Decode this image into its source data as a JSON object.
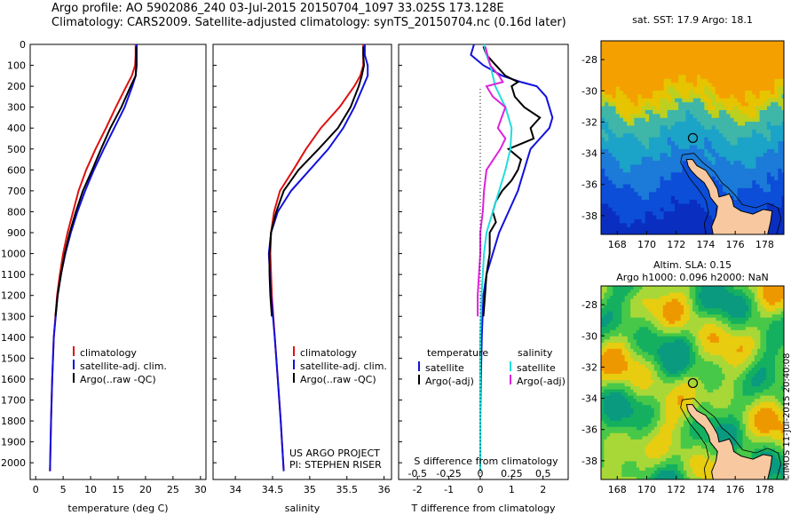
{
  "header": {
    "line1": "Argo profile: AO 5902086_240 03-Jul-2015 20150704_1097 33.025S 173.128E",
    "line2": "Climatology: CARS2009. Satellite-adjusted climatology: synTS_20150704.nc (0.16d later)"
  },
  "colors": {
    "climatology": "#dd1111",
    "satellite": "#1111dd",
    "argo": "#000000",
    "sat_salinity": "#22dddd",
    "argo_salinity": "#dd22dd"
  },
  "chart_data": [
    {
      "type": "line",
      "name": "temperature-profile",
      "xlabel": "temperature (deg C)",
      "ylabel": "",
      "xlim": [
        -1,
        31
      ],
      "ylim": [
        2080,
        0
      ],
      "xticks": [
        0,
        5,
        10,
        15,
        20,
        25,
        30
      ],
      "yticks": [
        0,
        100,
        200,
        300,
        400,
        500,
        600,
        700,
        800,
        900,
        1000,
        1100,
        1200,
        1300,
        1400,
        1500,
        1600,
        1700,
        1800,
        1900,
        2000
      ],
      "legend": [
        "climatology",
        "satellite-adj. clim.",
        "Argo(..raw -QC)"
      ],
      "legend_placement": "lower-center",
      "series": [
        {
          "name": "climatology",
          "color": "#dd1111",
          "y": [
            0,
            50,
            100,
            150,
            200,
            300,
            400,
            500,
            600,
            700,
            800,
            900,
            1000,
            1100,
            1200,
            1400,
            1600,
            1800,
            2040
          ],
          "values": [
            18.2,
            18.2,
            18.1,
            17.5,
            16.5,
            14.6,
            12.8,
            10.9,
            9.2,
            7.8,
            6.8,
            5.8,
            5.0,
            4.4,
            3.9,
            3.3,
            3.0,
            2.8,
            2.6
          ]
        },
        {
          "name": "satellite-adj. clim.",
          "color": "#1111dd",
          "y": [
            0,
            50,
            100,
            150,
            200,
            300,
            400,
            500,
            600,
            700,
            800,
            900,
            1000,
            1100,
            1200,
            1400,
            1600,
            1800,
            2040
          ],
          "values": [
            18.4,
            18.4,
            18.4,
            18.2,
            17.6,
            16.2,
            14.3,
            12.4,
            10.6,
            9.0,
            7.6,
            6.4,
            5.4,
            4.6,
            4.0,
            3.3,
            3.0,
            2.8,
            2.6
          ]
        },
        {
          "name": "Argo(..raw -QC)",
          "color": "#000000",
          "y": [
            10,
            50,
            100,
            150,
            200,
            300,
            400,
            500,
            600,
            700,
            800,
            900,
            1000,
            1100,
            1200,
            1300
          ],
          "values": [
            18.3,
            18.3,
            18.3,
            18.2,
            17.3,
            15.6,
            13.6,
            11.9,
            10.3,
            8.6,
            7.3,
            6.2,
            5.3,
            4.6,
            4.0,
            3.6
          ]
        }
      ]
    },
    {
      "type": "line",
      "name": "salinity-profile",
      "xlabel": "salinity",
      "ylabel": "",
      "xlim": [
        33.7,
        36.1
      ],
      "ylim": [
        2080,
        0
      ],
      "xticks": [
        34,
        34.5,
        35,
        35.5,
        36
      ],
      "legend": [
        "climatology",
        "satellite-adj. clim.",
        "Argo(..raw -QC)"
      ],
      "legend_placement": "lower-right",
      "annotation": [
        "US ARGO PROJECT",
        "PI: STEPHEN RISER"
      ],
      "series": [
        {
          "name": "climatology",
          "color": "#dd1111",
          "y": [
            0,
            50,
            100,
            150,
            200,
            300,
            400,
            500,
            600,
            700,
            800,
            900,
            1000,
            1200,
            1400,
            1600,
            1800,
            2040
          ],
          "values": [
            35.72,
            35.72,
            35.72,
            35.68,
            35.6,
            35.4,
            35.15,
            34.95,
            34.78,
            34.6,
            34.52,
            34.48,
            34.47,
            34.49,
            34.53,
            34.57,
            34.61,
            34.65
          ]
        },
        {
          "name": "satellite-adj. clim.",
          "color": "#1111dd",
          "y": [
            0,
            50,
            100,
            150,
            200,
            300,
            400,
            500,
            600,
            700,
            800,
            900,
            1000,
            1200,
            1400,
            1600,
            1800,
            2040
          ],
          "values": [
            35.74,
            35.74,
            35.78,
            35.78,
            35.72,
            35.6,
            35.45,
            35.25,
            35.0,
            34.75,
            34.57,
            34.48,
            34.45,
            34.48,
            34.53,
            34.57,
            34.61,
            34.65
          ]
        },
        {
          "name": "Argo(..raw -QC)",
          "color": "#000000",
          "y": [
            10,
            50,
            100,
            150,
            200,
            300,
            400,
            500,
            600,
            700,
            800,
            900,
            1000,
            1100,
            1200,
            1300
          ],
          "values": [
            35.72,
            35.72,
            35.73,
            35.7,
            35.66,
            35.55,
            35.38,
            35.12,
            34.85,
            34.65,
            34.55,
            34.48,
            34.46,
            34.46,
            34.47,
            34.49
          ]
        }
      ]
    },
    {
      "type": "line",
      "name": "difference-profile",
      "xlabel": "T difference from climatology",
      "xlabel_top": "S difference from climatology",
      "xlim": [
        -2.6,
        2.8
      ],
      "ylim": [
        2080,
        0
      ],
      "xticks": [
        -2,
        -1,
        0,
        1,
        2
      ],
      "xticks_s": [
        -0.5,
        -0.25,
        0,
        0.25,
        0.5
      ],
      "xticklabels_s": [
        "-0.5",
        "-0.25",
        "0",
        "0.25",
        "0.5"
      ],
      "legend_headers": [
        "temperature",
        "salinity"
      ],
      "legend": [
        "satellite",
        "Argo(-adj)",
        "satellite",
        "Argo(-adj)"
      ],
      "legend_placement": "lower-center",
      "series": [
        {
          "name": "satellite",
          "quantity": "temperature",
          "color": "#1111dd",
          "y": [
            0,
            50,
            100,
            150,
            180,
            200,
            250,
            300,
            350,
            400,
            450,
            500,
            550,
            600,
            650,
            700,
            800,
            900,
            1000,
            1100,
            1200,
            1400,
            1600,
            1800,
            2040
          ],
          "values": [
            -0.2,
            -0.3,
            0.1,
            0.7,
            1.3,
            1.8,
            2.1,
            2.2,
            2.3,
            2.2,
            1.9,
            1.6,
            1.5,
            1.4,
            1.3,
            1.2,
            0.9,
            0.6,
            0.4,
            0.2,
            0.1,
            0.05,
            0.02,
            0.0,
            0.0
          ]
        },
        {
          "name": "Argo(-adj)",
          "quantity": "temperature",
          "color": "#000000",
          "y": [
            10,
            50,
            100,
            150,
            180,
            200,
            250,
            300,
            350,
            400,
            450,
            500,
            550,
            600,
            650,
            700,
            750,
            800,
            850,
            900,
            1000,
            1100,
            1200,
            1300
          ],
          "values": [
            0.1,
            0.2,
            0.5,
            0.8,
            1.2,
            1.0,
            1.1,
            1.4,
            1.9,
            1.6,
            1.7,
            0.9,
            1.3,
            1.2,
            1.0,
            0.7,
            0.5,
            0.4,
            0.5,
            0.3,
            0.3,
            0.2,
            0.15,
            0.1
          ]
        },
        {
          "name": "satellite",
          "quantity": "salinity",
          "color": "#22dddd",
          "y": [
            0,
            50,
            100,
            150,
            200,
            300,
            400,
            500,
            600,
            700,
            800,
            900,
            1000,
            1200,
            1400,
            1600,
            1800,
            2040
          ],
          "values": [
            0.03,
            0.05,
            0.08,
            0.1,
            0.12,
            0.2,
            0.25,
            0.24,
            0.2,
            0.15,
            0.1,
            0.05,
            0.03,
            0.01,
            0.0,
            0.0,
            0.0,
            0.0
          ]
        },
        {
          "name": "Argo(-adj)",
          "quantity": "salinity",
          "color": "#dd22dd",
          "y": [
            10,
            100,
            150,
            180,
            200,
            250,
            300,
            350,
            400,
            450,
            500,
            600,
            700,
            800,
            900,
            1000,
            1100,
            1200,
            1300
          ],
          "values": [
            0.04,
            0.08,
            0.15,
            0.18,
            0.05,
            0.1,
            0.2,
            0.17,
            0.14,
            0.2,
            0.16,
            0.05,
            0.03,
            0.02,
            0.0,
            0.0,
            -0.01,
            -0.02,
            -0.02
          ]
        }
      ]
    },
    {
      "type": "heatmap",
      "name": "sst-map",
      "title": "sat. SST: 17.9 Argo: 18.1",
      "xlim": [
        166.9,
        179.3
      ],
      "ylim": [
        -39.2,
        -26.8
      ],
      "xticks": [
        168,
        170,
        172,
        174,
        176,
        178
      ],
      "yticks": [
        -28,
        -30,
        -32,
        -34,
        -36,
        -38
      ],
      "argo_location": [
        173.128,
        -33.025
      ]
    },
    {
      "type": "heatmap",
      "name": "sla-map",
      "title": "Altim. SLA: 0.15",
      "subtitle": "Argo h1000: 0.096 h2000: NaN",
      "xlim": [
        166.9,
        179.3
      ],
      "ylim": [
        -39.2,
        -26.8
      ],
      "xticks": [
        168,
        170,
        172,
        174,
        176,
        178
      ],
      "yticks": [
        -28,
        -30,
        -32,
        -34,
        -36,
        -38
      ],
      "argo_location": [
        173.128,
        -33.025
      ]
    }
  ],
  "footer": {
    "credit": "©IMOS 11-Jul-2015 20:40:08"
  }
}
